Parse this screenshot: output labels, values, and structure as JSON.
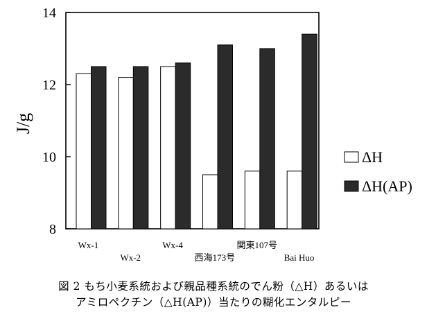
{
  "chart_data": {
    "type": "bar",
    "categories": [
      "Wx-1",
      "Wx-2",
      "Wx-4",
      "西海173号",
      "関東107号",
      "Bai Huo"
    ],
    "series": [
      {
        "name": "ΔH",
        "values": [
          12.3,
          12.2,
          12.5,
          9.5,
          9.6,
          9.6
        ],
        "color": "#ffffff"
      },
      {
        "name": "ΔH(AP)",
        "values": [
          12.5,
          12.5,
          12.6,
          13.1,
          13.0,
          13.4
        ],
        "color": "#2b2b2b"
      }
    ],
    "ylabel": "J/g",
    "xlabel": "",
    "ylim": [
      8,
      14
    ],
    "yticks": [
      8,
      10,
      12,
      14
    ],
    "legend_position": "right",
    "grid": false
  },
  "caption": {
    "line1": "図 2 もち小麦系統および親品種系統のでん粉（△H）あるいは",
    "line2": "アミロペクチン（△H(AP)）当たりの糊化エンタルピー"
  }
}
